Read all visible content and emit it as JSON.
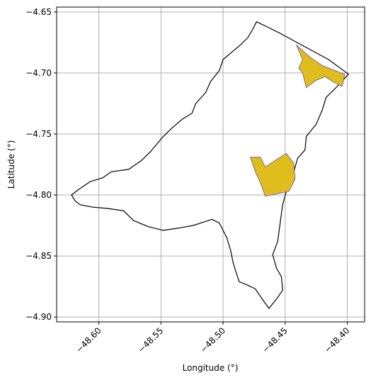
{
  "chart_data": {
    "type": "map",
    "xlabel": "Longitude (°)",
    "ylabel": "Latitude (°)",
    "xlim": [
      -48.634,
      -48.386
    ],
    "ylim": [
      -4.904,
      -4.646
    ],
    "grid": true,
    "xticks": [
      {
        "value": -48.6,
        "label": "−48.60"
      },
      {
        "value": -48.55,
        "label": "−48.55"
      },
      {
        "value": -48.5,
        "label": "−48.50"
      },
      {
        "value": -48.45,
        "label": "−48.45"
      },
      {
        "value": -48.4,
        "label": "−48.40"
      }
    ],
    "yticks": [
      {
        "value": -4.65,
        "label": "−4.65"
      },
      {
        "value": -4.7,
        "label": "−4.70"
      },
      {
        "value": -4.75,
        "label": "−4.75"
      },
      {
        "value": -4.8,
        "label": "−4.80"
      },
      {
        "value": -4.85,
        "label": "−4.85"
      },
      {
        "value": -4.9,
        "label": "−4.90"
      }
    ],
    "colors": {
      "boundary_stroke": "#000000",
      "region_fill": "#dfbd1c",
      "region_stroke": "#6a4fa6",
      "grid": "#b0b0b0",
      "axes": "#000000"
    },
    "boundary": [
      [
        -48.473,
        -4.658
      ],
      [
        -48.455,
        -4.667
      ],
      [
        -48.435,
        -4.678
      ],
      [
        -48.415,
        -4.689
      ],
      [
        -48.399,
        -4.701
      ],
      [
        -48.409,
        -4.712
      ],
      [
        -48.417,
        -4.72
      ],
      [
        -48.42,
        -4.73
      ],
      [
        -48.425,
        -4.742
      ],
      [
        -48.433,
        -4.752
      ],
      [
        -48.434,
        -4.763
      ],
      [
        -48.44,
        -4.77
      ],
      [
        -48.443,
        -4.781
      ],
      [
        -48.448,
        -4.793
      ],
      [
        -48.452,
        -4.808
      ],
      [
        -48.454,
        -4.823
      ],
      [
        -48.456,
        -4.838
      ],
      [
        -48.46,
        -4.849
      ],
      [
        -48.457,
        -4.86
      ],
      [
        -48.453,
        -4.867
      ],
      [
        -48.452,
        -4.878
      ],
      [
        -48.456,
        -4.884
      ],
      [
        -48.463,
        -4.893
      ],
      [
        -48.468,
        -4.886
      ],
      [
        -48.474,
        -4.877
      ],
      [
        -48.48,
        -4.874
      ],
      [
        -48.487,
        -4.871
      ],
      [
        -48.49,
        -4.862
      ],
      [
        -48.492,
        -4.855
      ],
      [
        -48.494,
        -4.845
      ],
      [
        -48.497,
        -4.835
      ],
      [
        -48.503,
        -4.823
      ],
      [
        -48.509,
        -4.82
      ],
      [
        -48.515,
        -4.822
      ],
      [
        -48.524,
        -4.825
      ],
      [
        -48.535,
        -4.827
      ],
      [
        -48.548,
        -4.829
      ],
      [
        -48.56,
        -4.826
      ],
      [
        -48.572,
        -4.821
      ],
      [
        -48.58,
        -4.813
      ],
      [
        -48.593,
        -4.811
      ],
      [
        -48.605,
        -4.81
      ],
      [
        -48.615,
        -4.808
      ],
      [
        -48.619,
        -4.805
      ],
      [
        -48.622,
        -4.8
      ],
      [
        -48.617,
        -4.796
      ],
      [
        -48.607,
        -4.789
      ],
      [
        -48.597,
        -4.786
      ],
      [
        -48.59,
        -4.781
      ],
      [
        -48.576,
        -4.779
      ],
      [
        -48.566,
        -4.772
      ],
      [
        -48.558,
        -4.764
      ],
      [
        -48.549,
        -4.753
      ],
      [
        -48.541,
        -4.745
      ],
      [
        -48.533,
        -4.738
      ],
      [
        -48.525,
        -4.733
      ],
      [
        -48.522,
        -4.725
      ],
      [
        -48.514,
        -4.716
      ],
      [
        -48.51,
        -4.707
      ],
      [
        -48.503,
        -4.698
      ],
      [
        -48.5,
        -4.689
      ],
      [
        -48.493,
        -4.683
      ],
      [
        -48.486,
        -4.677
      ],
      [
        -48.48,
        -4.671
      ],
      [
        -48.476,
        -4.664
      ],
      [
        -48.473,
        -4.658
      ]
    ],
    "regions": [
      [
        [
          -48.441,
          -4.677
        ],
        [
          -48.43,
          -4.687
        ],
        [
          -48.42,
          -4.694
        ],
        [
          -48.402,
          -4.701
        ],
        [
          -48.404,
          -4.711
        ],
        [
          -48.41,
          -4.708
        ],
        [
          -48.418,
          -4.703
        ],
        [
          -48.425,
          -4.706
        ],
        [
          -48.433,
          -4.712
        ],
        [
          -48.436,
          -4.7
        ],
        [
          -48.439,
          -4.696
        ],
        [
          -48.436,
          -4.689
        ],
        [
          -48.441,
          -4.677
        ]
      ],
      [
        [
          -48.478,
          -4.769
        ],
        [
          -48.47,
          -4.769
        ],
        [
          -48.466,
          -4.777
        ],
        [
          -48.457,
          -4.771
        ],
        [
          -48.449,
          -4.766
        ],
        [
          -48.443,
          -4.774
        ],
        [
          -48.442,
          -4.787
        ],
        [
          -48.447,
          -4.797
        ],
        [
          -48.466,
          -4.801
        ],
        [
          -48.47,
          -4.79
        ],
        [
          -48.474,
          -4.781
        ],
        [
          -48.478,
          -4.769
        ]
      ]
    ]
  }
}
